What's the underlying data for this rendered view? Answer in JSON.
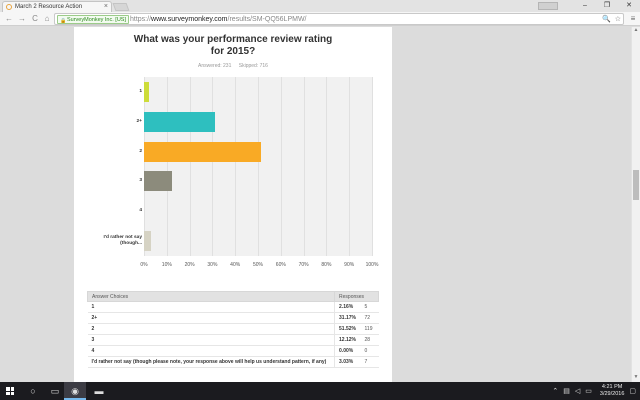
{
  "browser": {
    "tab_title": "March 2 Resource Action",
    "tab_close": "×",
    "window_controls": [
      "–",
      "❐",
      "✕"
    ],
    "secure_label": "SurveyMonkey Inc. [US]",
    "url_scheme": "https://",
    "url_host": "www.surveymonkey.com",
    "url_path": "/results/SM-QQ56LPMW/",
    "back": "←",
    "forward": "→",
    "reload": "C",
    "home": "⌂",
    "omni_icons": [
      "🔍",
      "☆"
    ],
    "menu": "≡"
  },
  "question": {
    "title_line1": "What was your performance review rating",
    "title_line2": "for 2015?",
    "answered_label": "Answered: 231",
    "skipped_label": "Skipped: 716"
  },
  "chart_data": {
    "type": "bar",
    "orientation": "horizontal",
    "categories": [
      "1",
      "2+",
      "2",
      "3",
      "4",
      "I'd rather not say (though..."
    ],
    "values": [
      2.16,
      31.17,
      51.52,
      12.12,
      0.0,
      3.03
    ],
    "colors": [
      "#cddc39",
      "#2ebfbf",
      "#f9aa25",
      "#8c8b7c",
      "#e07a4d",
      "#d6d3c4"
    ],
    "xlim": [
      0,
      100
    ],
    "x_ticks": [
      "0%",
      "10%",
      "20%",
      "30%",
      "40%",
      "50%",
      "60%",
      "70%",
      "80%",
      "90%",
      "100%"
    ],
    "grid": true
  },
  "table": {
    "headers": [
      "Answer Choices",
      "Responses"
    ],
    "rows": [
      {
        "choice": "1",
        "pct": "2.16%",
        "count": "5"
      },
      {
        "choice": "2+",
        "pct": "31.17%",
        "count": "72"
      },
      {
        "choice": "2",
        "pct": "51.52%",
        "count": "119"
      },
      {
        "choice": "3",
        "pct": "12.12%",
        "count": "28"
      },
      {
        "choice": "4",
        "pct": "0.00%",
        "count": "0"
      },
      {
        "choice": "I'd rather not say (though please note, your response above will help us understand pattern, if any)",
        "pct": "3.03%",
        "count": "7"
      }
    ]
  },
  "taskbar": {
    "time": "4:21 PM",
    "date": "3/29/2016"
  }
}
